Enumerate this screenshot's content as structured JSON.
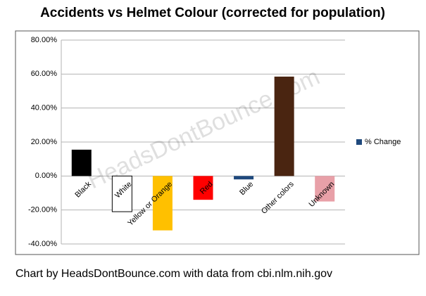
{
  "chart_data": {
    "type": "bar",
    "title": "Accidents vs Helmet Colour (corrected for population)",
    "categories": [
      "Black",
      "White",
      "Yellow or Orange",
      "Red",
      "Blue",
      "Other colors",
      "Unknown"
    ],
    "series": [
      {
        "name": "% Change",
        "color": "#1f497d",
        "values": [
          15.5,
          -21,
          -32,
          -14,
          -2,
          58.5,
          -15
        ],
        "point_colors": [
          "#000000",
          "#ffffff",
          "#ffc000",
          "#ff0000",
          "#1f497d",
          "#4a2511",
          "#e8a0a8"
        ]
      }
    ],
    "ylim": [
      -40,
      80
    ],
    "yticks": [
      {
        "value": -40,
        "label": "-40.00%"
      },
      {
        "value": -20,
        "label": "-20.00%"
      },
      {
        "value": 0,
        "label": "0.00%"
      },
      {
        "value": 20,
        "label": "20.00%"
      },
      {
        "value": 40,
        "label": "40.00%"
      },
      {
        "value": 60,
        "label": "60.00%"
      },
      {
        "value": 80,
        "label": "80.00%"
      }
    ],
    "grid": true,
    "legend": "right",
    "watermark": "HeadsDontBounce.com",
    "caption": "Chart by HeadsDontBounce.com with data from cbi.nlm.nih.gov"
  }
}
